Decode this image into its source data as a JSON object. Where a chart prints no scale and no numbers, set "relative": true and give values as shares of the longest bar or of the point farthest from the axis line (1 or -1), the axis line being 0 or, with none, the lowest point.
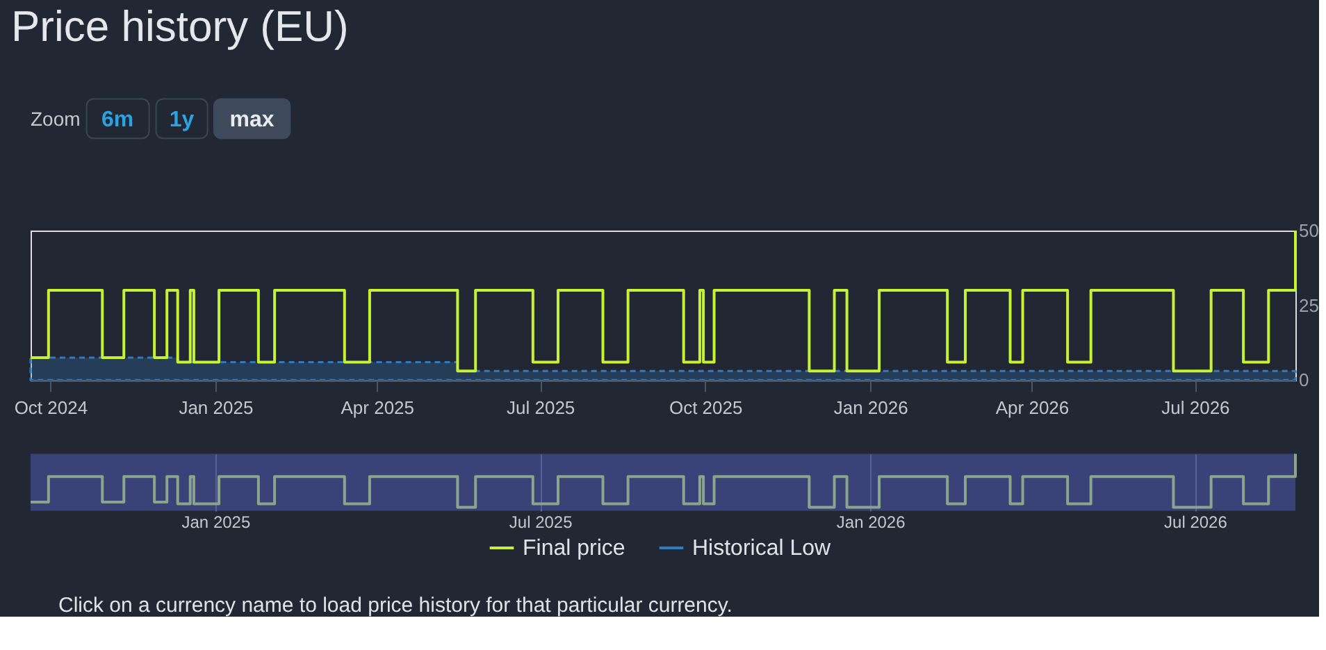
{
  "chart_data": [
    {
      "type": "step",
      "title": "Price history (EU)",
      "xlim": [
        "2024-09-20",
        "2026-08-26"
      ],
      "xticks": [
        {
          "value": "2024-10-01",
          "label": "Oct 2024"
        },
        {
          "value": "2025-01-01",
          "label": "Jan 2025"
        },
        {
          "value": "2025-04-01",
          "label": "Apr 2025"
        },
        {
          "value": "2025-07-01",
          "label": "Jul 2025"
        },
        {
          "value": "2025-10-01",
          "label": "Oct 2025"
        },
        {
          "value": "2026-01-01",
          "label": "Jan 2026"
        },
        {
          "value": "2026-04-01",
          "label": "Apr 2026"
        },
        {
          "value": "2026-07-01",
          "label": "Jul 2026"
        }
      ],
      "ylim": [
        0,
        50
      ],
      "yticks": [
        0,
        25,
        50
      ],
      "legend": "bottom",
      "annotations": [
        "Zoom",
        "6m",
        "1y",
        "max"
      ],
      "series": [
        {
          "name": "Final price",
          "type": "step",
          "color": "#c6f135",
          "line_style": "solid",
          "x": [
            "2024-09-20",
            "2024-09-30",
            "2024-10-30",
            "2024-11-11",
            "2024-11-28",
            "2024-12-05",
            "2024-12-11",
            "2024-12-18",
            "2024-12-20",
            "2025-01-03",
            "2025-01-25",
            "2025-02-03",
            "2025-03-14",
            "2025-03-28",
            "2025-05-16",
            "2025-05-26",
            "2025-06-27",
            "2025-07-11",
            "2025-08-05",
            "2025-08-19",
            "2025-09-19",
            "2025-09-28",
            "2025-09-30",
            "2025-10-06",
            "2025-11-28",
            "2025-12-12",
            "2025-12-19",
            "2026-01-06",
            "2026-02-13",
            "2026-02-23",
            "2026-03-20",
            "2026-03-27",
            "2026-04-21",
            "2026-05-04",
            "2026-06-19",
            "2026-07-10",
            "2026-07-28",
            "2026-08-11",
            "2026-08-26"
          ],
          "values": [
            7.5,
            30,
            7.5,
            30,
            7.5,
            30,
            6,
            30,
            6,
            30,
            6,
            30,
            6,
            30,
            3,
            30,
            6,
            30,
            6,
            30,
            6,
            30,
            6,
            30,
            3,
            30,
            3,
            30,
            6,
            30,
            6,
            30,
            6,
            30,
            3,
            30,
            6,
            30,
            50
          ]
        },
        {
          "name": "Historical Low",
          "type": "area",
          "color": "#2e7cc0",
          "line_style": "dashed",
          "x": [
            "2024-09-20",
            "2024-12-11",
            "2025-05-16",
            "2026-08-26"
          ],
          "values": [
            7.5,
            6,
            3,
            3
          ]
        }
      ]
    },
    {
      "type": "step",
      "relative": true,
      "grid": "x",
      "tick_labels": "x",
      "xlim": [
        "2024-09-20",
        "2026-08-26"
      ],
      "xticks": [
        {
          "value": "2025-01-01",
          "label": "Jan 2025"
        },
        {
          "value": "2025-07-01",
          "label": "Jul 2025"
        },
        {
          "value": "2026-01-01",
          "label": "Jan 2026"
        },
        {
          "value": "2026-07-01",
          "label": "Jul 2026"
        }
      ],
      "annotations": [
        "Click on a currency name to load price history for that particular currency."
      ],
      "series": [
        {
          "color": "#8da48c",
          "x": [
            "2024-09-20",
            "2024-09-30",
            "2024-10-30",
            "2024-11-11",
            "2024-11-28",
            "2024-12-05",
            "2024-12-11",
            "2024-12-18",
            "2024-12-20",
            "2025-01-03",
            "2025-01-25",
            "2025-02-03",
            "2025-03-14",
            "2025-03-28",
            "2025-05-16",
            "2025-05-26",
            "2025-06-27",
            "2025-07-11",
            "2025-08-05",
            "2025-08-19",
            "2025-09-19",
            "2025-09-28",
            "2025-09-30",
            "2025-10-06",
            "2025-11-28",
            "2025-12-12",
            "2025-12-19",
            "2026-01-06",
            "2026-02-13",
            "2026-02-23",
            "2026-03-20",
            "2026-03-27",
            "2026-04-21",
            "2026-05-04",
            "2026-06-19",
            "2026-07-10",
            "2026-07-28",
            "2026-08-11",
            "2026-08-26"
          ],
          "values": [
            0.15,
            0.6,
            0.15,
            0.6,
            0.15,
            0.6,
            0.12,
            0.6,
            0.12,
            0.6,
            0.12,
            0.6,
            0.12,
            0.6,
            0.06,
            0.6,
            0.12,
            0.6,
            0.12,
            0.6,
            0.12,
            0.6,
            0.12,
            0.6,
            0.06,
            0.6,
            0.06,
            0.6,
            0.12,
            0.6,
            0.12,
            0.6,
            0.12,
            0.6,
            0.06,
            0.6,
            0.12,
            0.6,
            1
          ]
        }
      ]
    }
  ]
}
